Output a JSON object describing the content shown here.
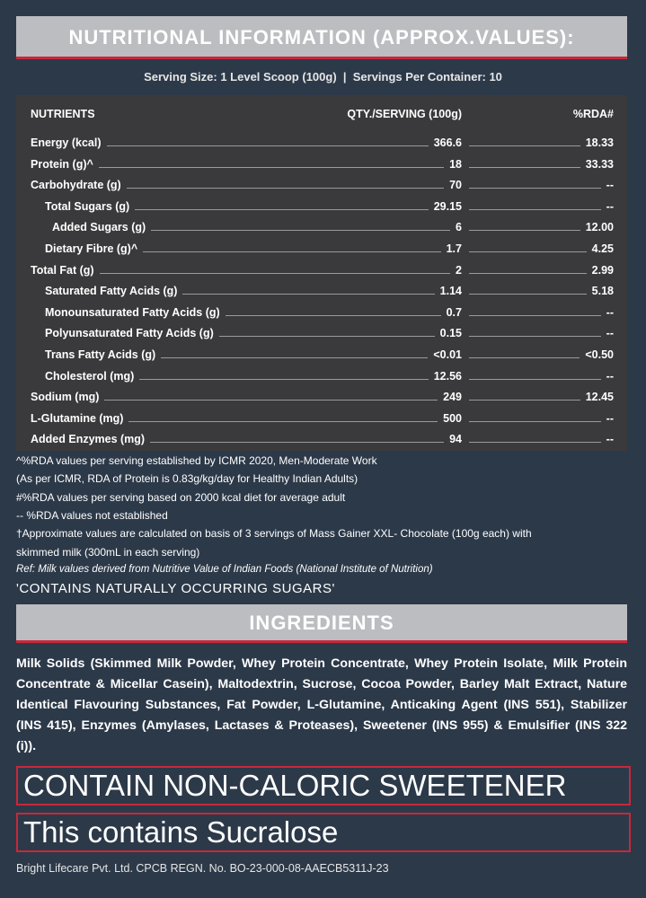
{
  "header": {
    "title": "NUTRITIONAL INFORMATION (APPROX.VALUES):",
    "serving": "Serving Size: 1 Level Scoop (100g)  |  Servings Per Container: 10"
  },
  "table": {
    "columns": [
      "NUTRIENTS",
      "QTY./SERVING (100g)",
      "%RDA#"
    ],
    "rows": [
      [
        "Energy (kcal)",
        "366.6",
        "18.33"
      ],
      [
        "Protein (g)^",
        "18",
        "33.33"
      ],
      [
        "Carbohydrate (g)",
        "70",
        "--"
      ],
      [
        "Total Sugars (g)",
        "29.15",
        "--"
      ],
      [
        "Added Sugars (g)",
        "6",
        "12.00"
      ],
      [
        "Dietary Fibre (g)^",
        "1.7",
        "4.25"
      ],
      [
        "Total Fat (g)",
        "2",
        "2.99"
      ],
      [
        "Saturated Fatty Acids (g)",
        "1.14",
        "5.18"
      ],
      [
        "Monounsaturated Fatty Acids (g)",
        "0.7",
        "--"
      ],
      [
        "Polyunsaturated Fatty Acids (g)",
        "0.15",
        "--"
      ],
      [
        "Trans Fatty Acids (g)",
        "<0.01",
        "<0.50"
      ],
      [
        "Cholesterol (mg)",
        "12.56",
        "--"
      ],
      [
        "Sodium (mg)",
        "249",
        "12.45"
      ],
      [
        "L-Glutamine (mg)",
        "500",
        "--"
      ],
      [
        "Added Enzymes (mg)",
        "94",
        "--"
      ]
    ]
  },
  "notes": [
    "^%RDA values per serving established by ICMR 2020, Men-Moderate Work",
    "(As per ICMR, RDA of Protein is 0.83g/kg/day for Healthy Indian Adults)",
    "#%RDA values per serving based on 2000 kcal diet for average adult",
    "-- %RDA values not established",
    "†Approximate values are calculated on basis of 3 servings of Mass Gainer XXL- Chocolate (100g each) with",
    "skimmed milk (300mL in each serving)",
    "Ref: Milk values derived from Nutritive Value of Indian Foods (National Institute of Nutrition)"
  ],
  "sugars_note": "'CONTAINS NATURALLY OCCURRING SUGARS'",
  "ingredients": {
    "title": "INGREDIENTS",
    "text": "Milk Solids (Skimmed Milk Powder, Whey Protein Concentrate, Whey Protein Isolate, Milk Protein Concentrate & Micellar Casein), Maltodextrin, Sucrose, Cocoa Powder, Barley Malt Extract, Nature Identical Flavouring Substances, Fat Powder, L-Glutamine, Anticaking Agent (INS 551), Stabilizer (INS 415), Enzymes (Amylases, Lactases & Proteases), Sweetener (INS 955) & Emulsifier (INS 322 (i))."
  },
  "warning": "CONTAIN NON-CALORIC SWEETENER",
  "sucralose": "This contains Sucralose",
  "footer": "Bright Lifecare Pvt. Ltd. CPCB REGN. No. BO-23-000-08-AAECB5311J-23"
}
